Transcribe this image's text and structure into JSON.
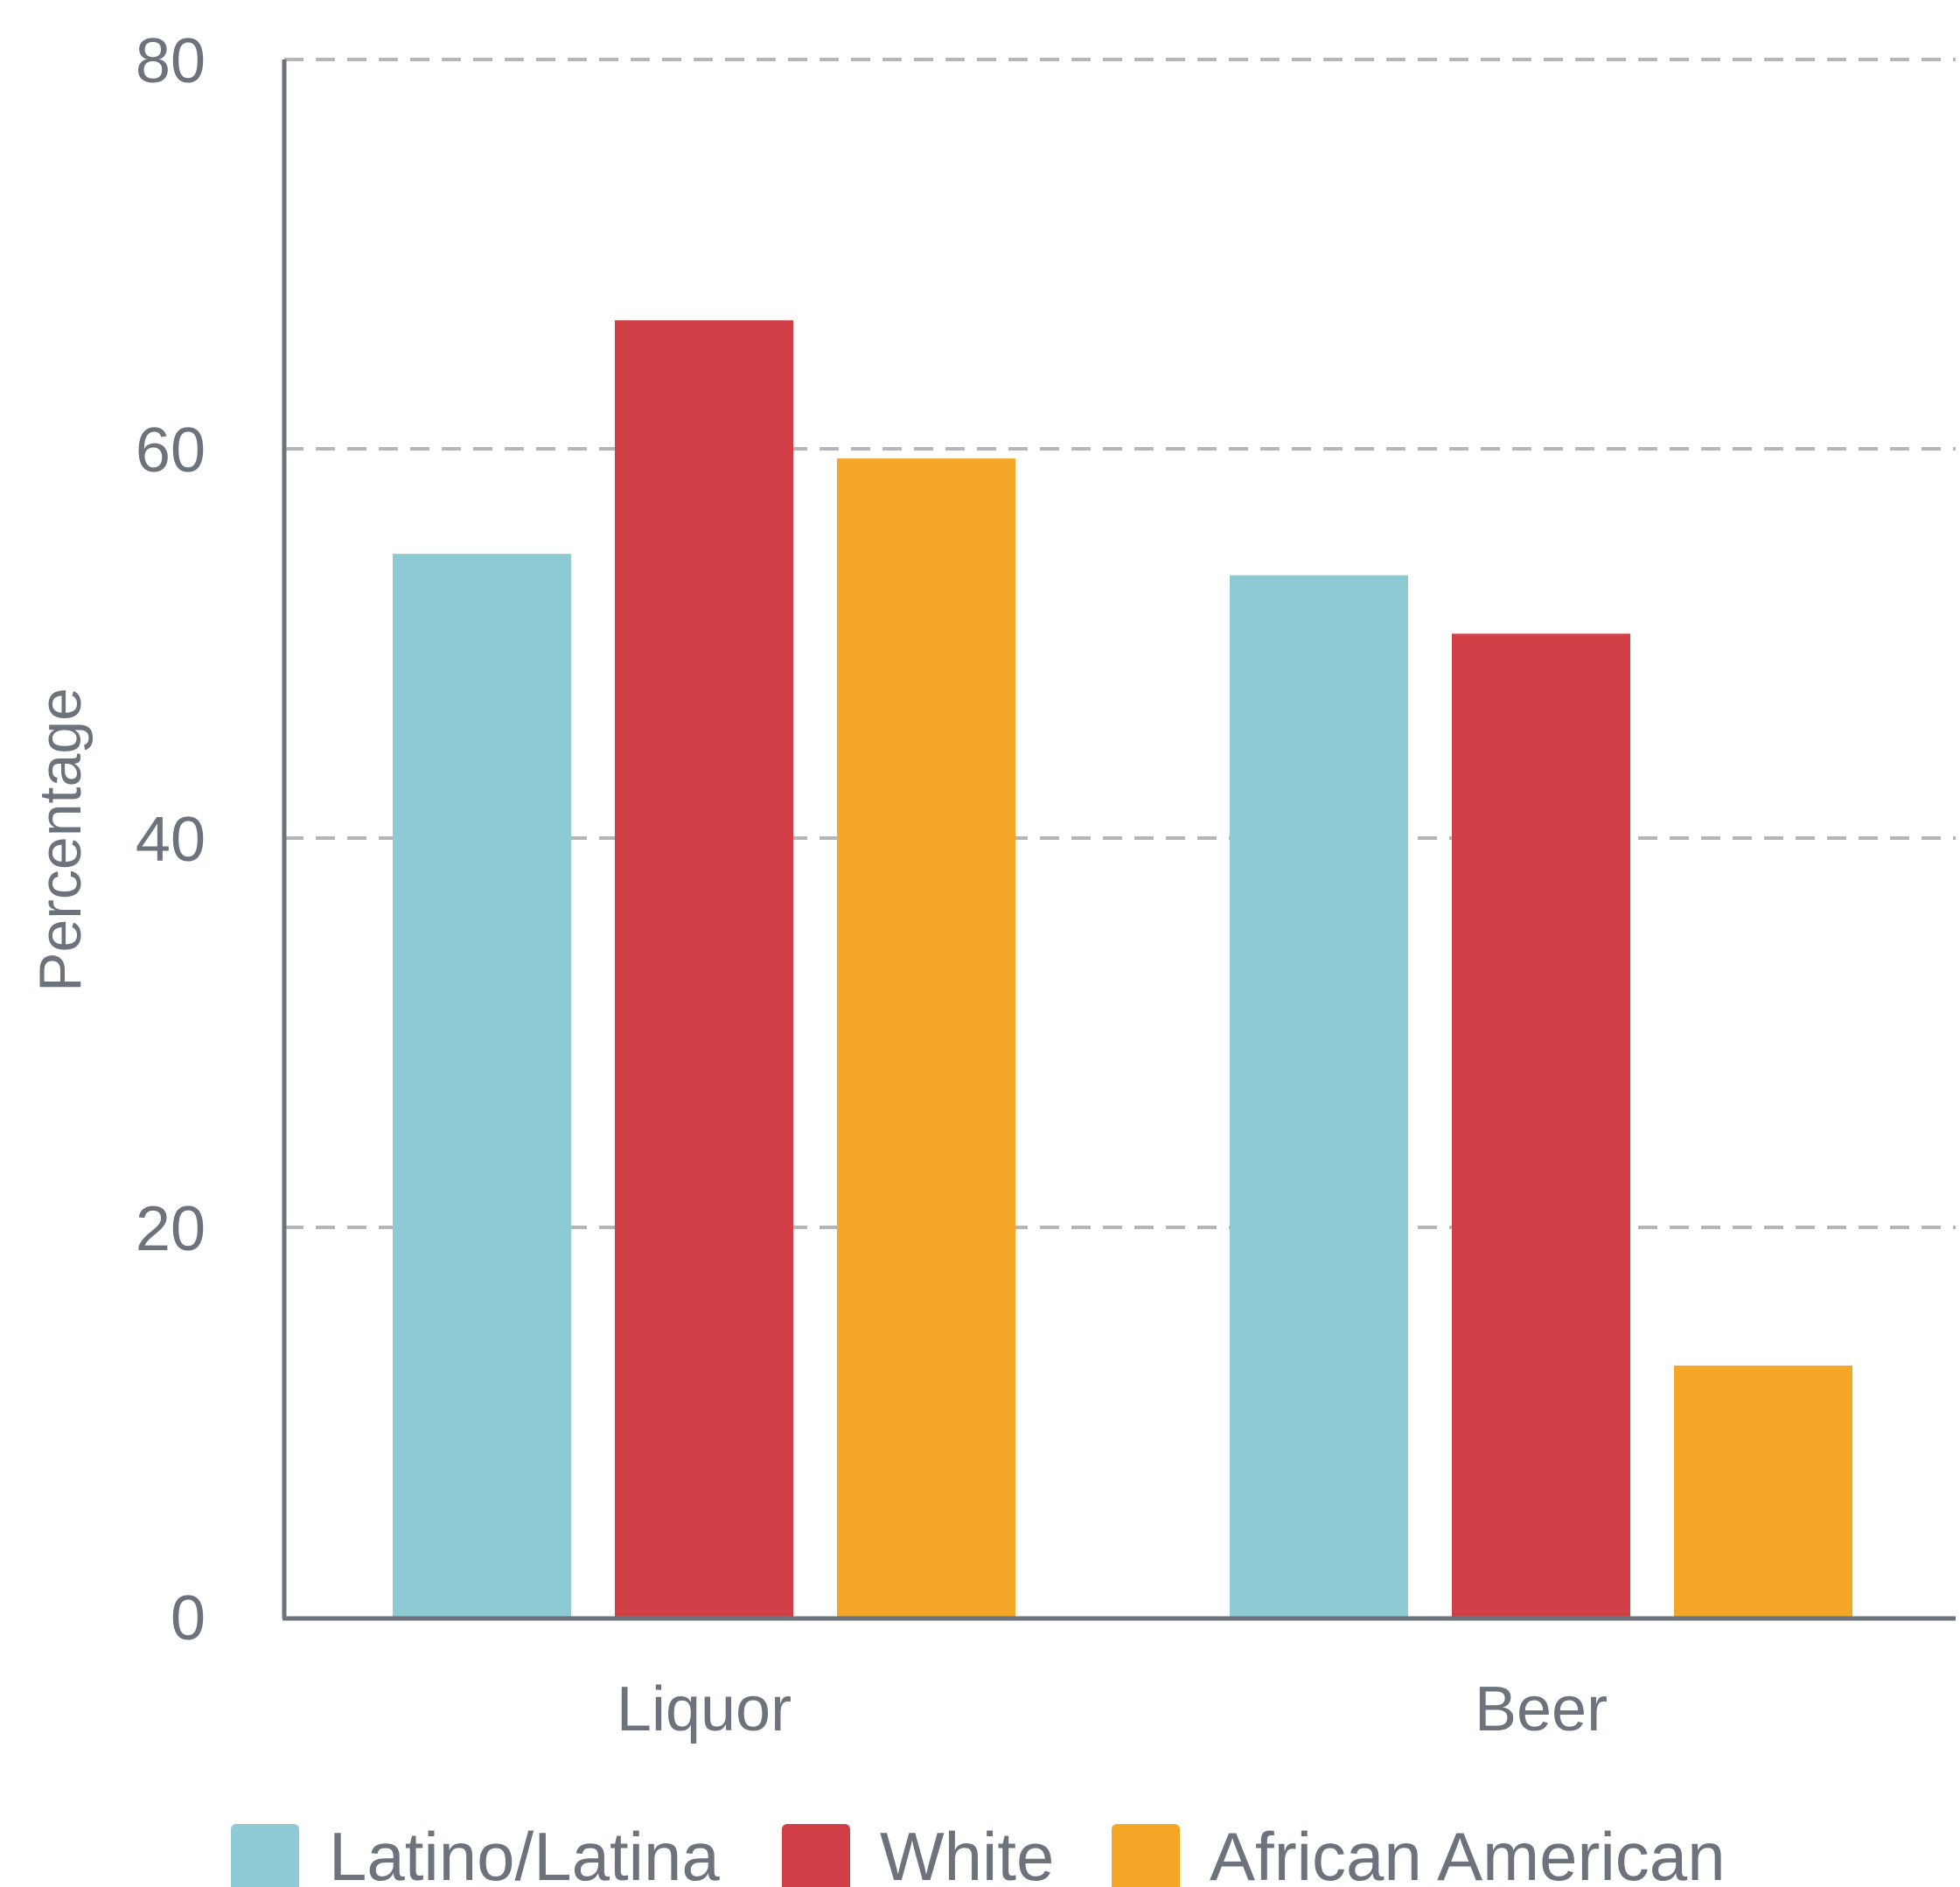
{
  "chart_data": {
    "type": "bar",
    "title": "",
    "xlabel": "",
    "ylabel": "Percentage",
    "ylim": [
      0,
      80
    ],
    "yticks": [
      0,
      20,
      40,
      60,
      80
    ],
    "grid": true,
    "legend_position": "bottom",
    "categories": [
      "Liquor",
      "Beer"
    ],
    "series": [
      {
        "name": "Latino/Latina",
        "color": "#8ecad3",
        "values": [
          54.6,
          53.5
        ]
      },
      {
        "name": "White",
        "color": "#cf3f45",
        "values": [
          66.6,
          50.5
        ]
      },
      {
        "name": "African American",
        "color": "#f4a626",
        "values": [
          59.5,
          12.9
        ]
      }
    ]
  },
  "colors": {
    "axis": "#6c737c",
    "grid": "#b4b6ba",
    "text": "#6c737c"
  }
}
